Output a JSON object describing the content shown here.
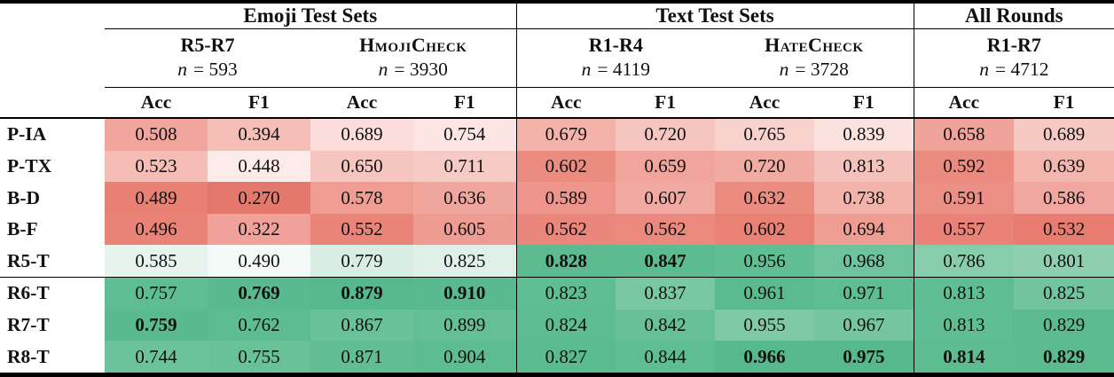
{
  "table": {
    "corner": "",
    "groups": [
      {
        "label": "Emoji Test Sets",
        "span": 4
      },
      {
        "label": "Text Test Sets",
        "span": 4
      },
      {
        "label": "All Rounds",
        "span": 2
      }
    ],
    "subgroups": [
      {
        "label": "R5-R7",
        "smallcaps": false,
        "n_var": "n",
        "n_rest": "= 593"
      },
      {
        "label": "HmojiCheck",
        "smallcaps": true,
        "n_var": "n",
        "n_rest": "= 3930"
      },
      {
        "label": "R1-R4",
        "smallcaps": false,
        "n_var": "n",
        "n_rest": "= 4119"
      },
      {
        "label": "HateCheck",
        "smallcaps": true,
        "n_var": "n",
        "n_rest": "= 3728"
      },
      {
        "label": "R1-R7",
        "smallcaps": false,
        "n_var": "n",
        "n_rest": "= 4712"
      }
    ],
    "metrics": [
      "Acc",
      "F1",
      "Acc",
      "F1",
      "Acc",
      "F1",
      "Acc",
      "F1",
      "Acc",
      "F1"
    ],
    "heatmap_colors": {
      "strong_red": "#e5786d",
      "white": "#ffffff",
      "strong_green": "#55b98c"
    },
    "rows": [
      {
        "label": "P-IA",
        "cells": [
          {
            "v": "0.508",
            "bg": "#f1a59d",
            "bold": false
          },
          {
            "v": "0.394",
            "bg": "#f5bfb8",
            "bold": false
          },
          {
            "v": "0.689",
            "bg": "#fbdedb",
            "bold": false
          },
          {
            "v": "0.754",
            "bg": "#fce5e2",
            "bold": false
          },
          {
            "v": "0.679",
            "bg": "#f3b2aa",
            "bold": false
          },
          {
            "v": "0.720",
            "bg": "#f6c5bf",
            "bold": false
          },
          {
            "v": "0.765",
            "bg": "#f8d3cd",
            "bold": false
          },
          {
            "v": "0.839",
            "bg": "#fbe2df",
            "bold": false
          },
          {
            "v": "0.658",
            "bg": "#f0a39b",
            "bold": false
          },
          {
            "v": "0.689",
            "bg": "#f7c9c3",
            "bold": false
          }
        ]
      },
      {
        "label": "P-TX",
        "cells": [
          {
            "v": "0.523",
            "bg": "#f5bdb6",
            "bold": false
          },
          {
            "v": "0.448",
            "bg": "#fdebe9",
            "bold": false
          },
          {
            "v": "0.650",
            "bg": "#f6c5bf",
            "bold": false
          },
          {
            "v": "0.711",
            "bg": "#f7cbc5",
            "bold": false
          },
          {
            "v": "0.602",
            "bg": "#eb8c81",
            "bold": false
          },
          {
            "v": "0.659",
            "bg": "#f0a49b",
            "bold": false
          },
          {
            "v": "0.720",
            "bg": "#f2aba3",
            "bold": false
          },
          {
            "v": "0.813",
            "bg": "#f5c2bb",
            "bold": false
          },
          {
            "v": "0.592",
            "bg": "#eb8b80",
            "bold": false
          },
          {
            "v": "0.639",
            "bg": "#f3b6ae",
            "bold": false
          }
        ]
      },
      {
        "label": "B-D",
        "cells": [
          {
            "v": "0.489",
            "bg": "#e88074",
            "bold": false
          },
          {
            "v": "0.270",
            "bg": "#e5786d",
            "bold": false
          },
          {
            "v": "0.578",
            "bg": "#ef9c93",
            "bold": false
          },
          {
            "v": "0.636",
            "bg": "#f0a59d",
            "bold": false
          },
          {
            "v": "0.589",
            "bg": "#ee958b",
            "bold": false
          },
          {
            "v": "0.607",
            "bg": "#f1a9a1",
            "bold": false
          },
          {
            "v": "0.632",
            "bg": "#ec8b80",
            "bold": false
          },
          {
            "v": "0.738",
            "bg": "#f3b2aa",
            "bold": false
          },
          {
            "v": "0.591",
            "bg": "#ec9086",
            "bold": false
          },
          {
            "v": "0.586",
            "bg": "#f1a79f",
            "bold": false
          }
        ]
      },
      {
        "label": "B-F",
        "cells": [
          {
            "v": "0.496",
            "bg": "#e98377",
            "bold": false
          },
          {
            "v": "0.322",
            "bg": "#f0a199",
            "bold": false
          },
          {
            "v": "0.552",
            "bg": "#ea8478",
            "bold": false
          },
          {
            "v": "0.605",
            "bg": "#ee9b91",
            "bold": false
          },
          {
            "v": "0.562",
            "bg": "#ea867b",
            "bold": false
          },
          {
            "v": "0.562",
            "bg": "#eb897e",
            "bold": false
          },
          {
            "v": "0.602",
            "bg": "#e98175",
            "bold": false
          },
          {
            "v": "0.694",
            "bg": "#ef9c92",
            "bold": false
          },
          {
            "v": "0.557",
            "bg": "#ea8277",
            "bold": false
          },
          {
            "v": "0.532",
            "bg": "#e87c70",
            "bold": false
          }
        ]
      },
      {
        "label": "R5-T",
        "cells": [
          {
            "v": "0.585",
            "bg": "#e7f3ed",
            "bold": false
          },
          {
            "v": "0.490",
            "bg": "#f4faf7",
            "bold": false
          },
          {
            "v": "0.779",
            "bg": "#d8eee3",
            "bold": false
          },
          {
            "v": "0.825",
            "bg": "#def0e8",
            "bold": false
          },
          {
            "v": "0.828",
            "bg": "#5bbb8f",
            "bold": true
          },
          {
            "v": "0.847",
            "bg": "#5cbc90",
            "bold": true
          },
          {
            "v": "0.956",
            "bg": "#60be93",
            "bold": false
          },
          {
            "v": "0.968",
            "bg": "#6fc39c",
            "bold": false
          },
          {
            "v": "0.786",
            "bg": "#87cdab",
            "bold": false
          },
          {
            "v": "0.801",
            "bg": "#8dcfae",
            "bold": false
          }
        ]
      },
      {
        "label": "R6-T",
        "cells": [
          {
            "v": "0.757",
            "bg": "#5fbd92",
            "bold": false
          },
          {
            "v": "0.769",
            "bg": "#58ba8e",
            "bold": true
          },
          {
            "v": "0.879",
            "bg": "#56b98d",
            "bold": true
          },
          {
            "v": "0.910",
            "bg": "#58ba8e",
            "bold": true
          },
          {
            "v": "0.823",
            "bg": "#5ebd92",
            "bold": false
          },
          {
            "v": "0.837",
            "bg": "#7ac7a3",
            "bold": false
          },
          {
            "v": "0.961",
            "bg": "#59bb8e",
            "bold": false
          },
          {
            "v": "0.971",
            "bg": "#5ebd92",
            "bold": false
          },
          {
            "v": "0.813",
            "bg": "#5ebd92",
            "bold": false
          },
          {
            "v": "0.825",
            "bg": "#71c49e",
            "bold": false
          }
        ]
      },
      {
        "label": "R7-T",
        "cells": [
          {
            "v": "0.759",
            "bg": "#58ba8e",
            "bold": true
          },
          {
            "v": "0.762",
            "bg": "#5dbc91",
            "bold": false
          },
          {
            "v": "0.867",
            "bg": "#69c198",
            "bold": false
          },
          {
            "v": "0.899",
            "bg": "#64bf95",
            "bold": false
          },
          {
            "v": "0.824",
            "bg": "#5dbc91",
            "bold": false
          },
          {
            "v": "0.842",
            "bg": "#67c096",
            "bold": false
          },
          {
            "v": "0.955",
            "bg": "#7fc9a6",
            "bold": false
          },
          {
            "v": "0.967",
            "bg": "#76c5a1",
            "bold": false
          },
          {
            "v": "0.813",
            "bg": "#5ebd92",
            "bold": false
          },
          {
            "v": "0.829",
            "bg": "#5bbb8f",
            "bold": false
          }
        ]
      },
      {
        "label": "R8-T",
        "cells": [
          {
            "v": "0.744",
            "bg": "#6cc29a",
            "bold": false
          },
          {
            "v": "0.755",
            "bg": "#69c198",
            "bold": false
          },
          {
            "v": "0.871",
            "bg": "#61be94",
            "bold": false
          },
          {
            "v": "0.904",
            "bg": "#5ebc91",
            "bold": false
          },
          {
            "v": "0.827",
            "bg": "#59bb8e",
            "bold": false
          },
          {
            "v": "0.844",
            "bg": "#5ebd92",
            "bold": false
          },
          {
            "v": "0.966",
            "bg": "#56b98d",
            "bold": true
          },
          {
            "v": "0.975",
            "bg": "#56b98d",
            "bold": true
          },
          {
            "v": "0.814",
            "bg": "#5dbc90",
            "bold": true
          },
          {
            "v": "0.829",
            "bg": "#5bbb8f",
            "bold": true
          }
        ]
      }
    ]
  }
}
